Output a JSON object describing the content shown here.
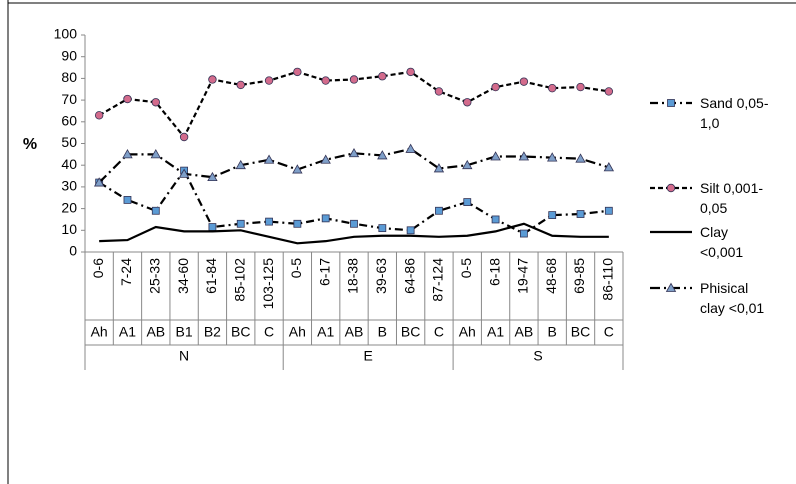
{
  "chart_data": {
    "type": "line",
    "y_label": "%",
    "groups": [
      "N",
      "E",
      "S"
    ],
    "group_sizes": [
      7,
      6,
      6
    ],
    "horizons": [
      "Ah",
      "A1",
      "AB",
      "B1",
      "B2",
      "BC",
      "C",
      "Ah",
      "A1",
      "AB",
      "B",
      "BC",
      "C",
      "Ah",
      "A1",
      "AB",
      "B",
      "BC",
      "C"
    ],
    "categories": [
      "0-6",
      "7-24",
      "25-33",
      "34-60",
      "61-84",
      "85-102",
      "103-125",
      "0-5",
      "6-17",
      "18-38",
      "39-63",
      "64-86",
      "87-124",
      "0-5",
      "6-18",
      "19-47",
      "48-68",
      "69-85",
      "86-110"
    ],
    "series": [
      {
        "name": "Sand 0,05-1,0",
        "color": "#5b9bd5",
        "marker": "square",
        "values": [
          32,
          24,
          19,
          37.5,
          11.5,
          13,
          14,
          13,
          15.5,
          13,
          11,
          10,
          19,
          23,
          15,
          8.5,
          17,
          17.5,
          19
        ]
      },
      {
        "name": "Silt 0,001-0,05",
        "color": "#d36b8c",
        "marker": "circle",
        "values": [
          63,
          70.5,
          69,
          53,
          79.5,
          77,
          79,
          83,
          79,
          79.5,
          81,
          83,
          74,
          69,
          76,
          78.5,
          75.5,
          76,
          74
        ]
      },
      {
        "name": "Clay <0,001",
        "color": "#000000",
        "marker": "none",
        "values": [
          5,
          5.5,
          11.5,
          9.5,
          9.5,
          10,
          7,
          4,
          5,
          7,
          7.5,
          7.5,
          7,
          7.5,
          9.5,
          13,
          7.5,
          7,
          7
        ]
      },
      {
        "name": "Phisical clay <0,01",
        "color": "#7f9fc8",
        "marker": "triangle",
        "values": [
          32,
          45,
          45,
          36,
          34.5,
          40,
          42.5,
          38,
          42.5,
          45.5,
          44.5,
          47.5,
          38.5,
          40,
          44,
          44,
          43.5,
          43,
          39
        ]
      }
    ],
    "ylim": [
      0,
      100
    ],
    "yticks": [
      0,
      10,
      20,
      30,
      40,
      50,
      60,
      70,
      80,
      90,
      100
    ],
    "grid": false
  }
}
